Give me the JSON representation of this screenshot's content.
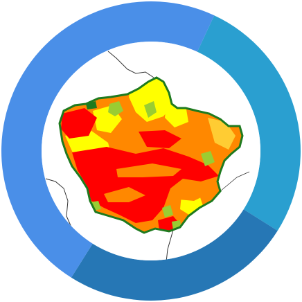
{
  "ring": {
    "segments": [
      {
        "color": "#4a8fe8",
        "fraction": 0.48
      },
      {
        "color": "#2a9fd0",
        "fraction": 0.27
      },
      {
        "color": "#2677b5",
        "fraction": 0.25
      }
    ]
  },
  "map": {
    "background": "#ffffff",
    "border_line_color": "#333333",
    "region_outline_color": "#1e7a1e",
    "legend_classes": [
      {
        "color": "#ff0000"
      },
      {
        "color": "#ff8800"
      },
      {
        "color": "#ffff00"
      },
      {
        "color": "#9acd32"
      },
      {
        "color": "#1e7a1e"
      }
    ]
  }
}
